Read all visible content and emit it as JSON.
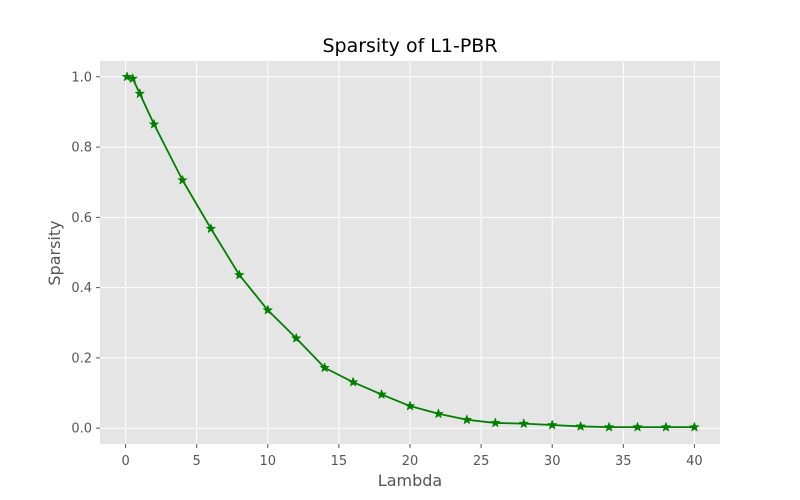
{
  "chart_data": {
    "type": "line",
    "title": "Sparsity of L1-PBR",
    "xlabel": "Lambda",
    "ylabel": "Sparsity",
    "xlim": [
      -1.8,
      41.8
    ],
    "ylim": [
      -0.045,
      1.045
    ],
    "x_ticks": [
      0,
      5,
      10,
      15,
      20,
      25,
      30,
      35,
      40
    ],
    "y_ticks": [
      0.0,
      0.2,
      0.4,
      0.6,
      0.8,
      1.0
    ],
    "x_tick_labels": [
      "0",
      "5",
      "10",
      "15",
      "20",
      "25",
      "30",
      "35",
      "40"
    ],
    "y_tick_labels": [
      "0.0",
      "0.2",
      "0.4",
      "0.6",
      "0.8",
      "1.0"
    ],
    "grid": true,
    "style": "ggplot",
    "series": [
      {
        "color": "#008000",
        "marker": "star",
        "x": [
          0.1,
          0.5,
          1,
          2,
          4,
          6,
          8,
          10,
          12,
          14,
          16,
          18,
          20,
          22,
          24,
          26,
          28,
          30,
          32,
          34,
          36,
          38,
          40
        ],
        "y": [
          1.0,
          0.995,
          0.952,
          0.865,
          0.706,
          0.568,
          0.436,
          0.336,
          0.256,
          0.172,
          0.131,
          0.096,
          0.063,
          0.041,
          0.024,
          0.015,
          0.013,
          0.009,
          0.005,
          0.003,
          0.003,
          0.003,
          0.003
        ]
      }
    ]
  }
}
